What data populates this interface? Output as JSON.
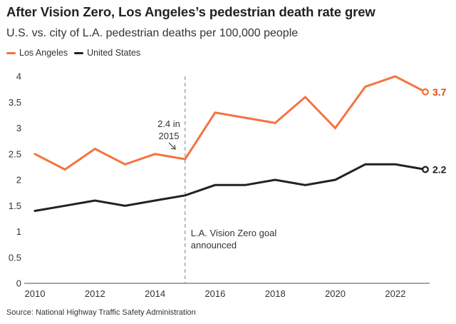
{
  "chart_data": {
    "type": "line",
    "title": "After Vision Zero, Los Angeles’s pedestrian death rate grew",
    "subtitle": "U.S. vs. city of L.A. pedestrian deaths per 100,000 people",
    "source": "Source: National Highway Traffic Safety Administration",
    "xlabel": "",
    "ylabel": "",
    "x": [
      2010,
      2011,
      2012,
      2013,
      2014,
      2015,
      2016,
      2017,
      2018,
      2019,
      2020,
      2021,
      2022,
      2023
    ],
    "xlim": [
      2010,
      2023
    ],
    "ylim": [
      0,
      4
    ],
    "x_ticks": [
      "2010",
      "2012",
      "2014",
      "2016",
      "2018",
      "2020",
      "2022"
    ],
    "x_tick_values": [
      2010,
      2012,
      2014,
      2016,
      2018,
      2020,
      2022
    ],
    "y_ticks": [
      "0",
      "0.5",
      "1",
      "1.5",
      "2",
      "2.5",
      "3",
      "3.5",
      "4"
    ],
    "y_tick_values": [
      0,
      0.5,
      1,
      1.5,
      2,
      2.5,
      3,
      3.5,
      4
    ],
    "grid": false,
    "legend_position": "top-left",
    "series": [
      {
        "name": "Los Angeles",
        "color": "#f4733f",
        "label_color": "#d9481b",
        "values": [
          2.5,
          2.2,
          2.6,
          2.3,
          2.5,
          2.4,
          3.3,
          3.2,
          3.1,
          3.6,
          3.0,
          3.8,
          4.0,
          3.7
        ],
        "end_label": "3.7"
      },
      {
        "name": "United States",
        "color": "#222222",
        "label_color": "#222222",
        "values": [
          1.4,
          1.5,
          1.6,
          1.5,
          1.6,
          1.7,
          1.9,
          1.9,
          2.0,
          1.9,
          2.0,
          2.3,
          2.3,
          2.2
        ],
        "end_label": "2.2"
      }
    ],
    "annotations": [
      {
        "type": "vline",
        "x": 2015,
        "text_lines": [
          "L.A. Vision Zero goal",
          "announced"
        ]
      },
      {
        "type": "point-callout",
        "x": 2015,
        "series": "Los Angeles",
        "text_lines": [
          "2.4 in",
          "2015"
        ]
      }
    ]
  }
}
